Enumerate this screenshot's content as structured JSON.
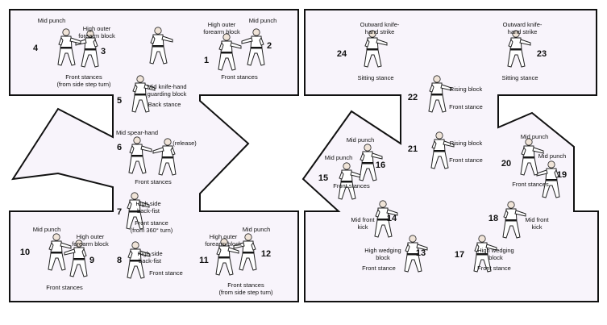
{
  "diagram": {
    "moves": [
      {
        "n": "1",
        "label": "High outer\nforearm block"
      },
      {
        "n": "2",
        "label": "Mid punch"
      },
      {
        "n": "3",
        "label": "High outer\nforearm block"
      },
      {
        "n": "4",
        "label": "Mid punch"
      },
      {
        "n": "5",
        "label": "Mid knife-hand\nguarding block"
      },
      {
        "n": "6",
        "label": "Mid spear-hand"
      },
      {
        "n": "7",
        "label": "High side\nback-fist"
      },
      {
        "n": "8",
        "label": "High side\nback-fist"
      },
      {
        "n": "9",
        "label": "High outer\nforearm block"
      },
      {
        "n": "10",
        "label": "Mid punch"
      },
      {
        "n": "11",
        "label": "High outer\nforearm block"
      },
      {
        "n": "12",
        "label": "Mid punch"
      },
      {
        "n": "13",
        "label": "High wedging\nblock"
      },
      {
        "n": "14",
        "label": "Mid front\nkick"
      },
      {
        "n": "15",
        "label": "Mid punch"
      },
      {
        "n": "16",
        "label": "Mid punch"
      },
      {
        "n": "17",
        "label": "High wedging\nblock"
      },
      {
        "n": "18",
        "label": "Mid front\nkick"
      },
      {
        "n": "19",
        "label": "Mid punch"
      },
      {
        "n": "20",
        "label": "Mid punch"
      },
      {
        "n": "21",
        "label": "Rising block"
      },
      {
        "n": "22",
        "label": "Rising block"
      },
      {
        "n": "23",
        "label": "Outward knife-\nhand strike"
      },
      {
        "n": "24",
        "label": "Outward knife-\nhand strike"
      }
    ],
    "stances": {
      "s_1_2": "Front stances",
      "s_3_4": "Front stances\n(from side step turn)",
      "s_5": "Back stance",
      "s_6": "Front stances",
      "s_6_release": "(release)",
      "s_7": "Front stance\n(from 360° turn)",
      "s_8": "Front stance",
      "s_9_10": "Front stances",
      "s_11_12": "Front stances\n(from side step turn)",
      "s_13": "Front stance",
      "s_15_16": "Front stances",
      "s_17": "Front stance",
      "s_19_20": "Front stances",
      "s_21": "Front stance",
      "s_22": "Front stance",
      "s_23": "Sitting stance",
      "s_24": "Sitting stance"
    }
  }
}
